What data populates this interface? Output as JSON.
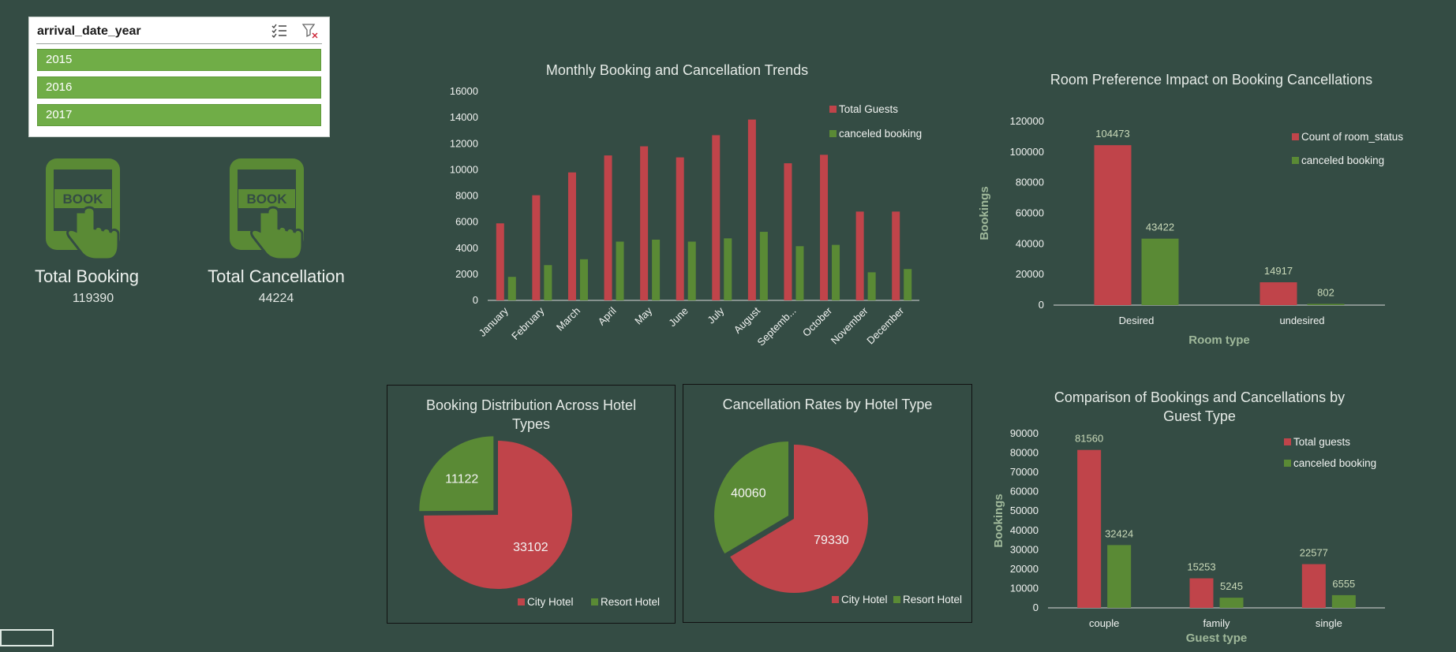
{
  "colors": {
    "red": "#c0444a",
    "green": "#5a8a35",
    "bg": "#344c44",
    "slicer_item": "#70ad47"
  },
  "slicer": {
    "title": "arrival_date_year",
    "items": [
      "2015",
      "2016",
      "2017"
    ],
    "icons": [
      "multi-select-icon",
      "clear-filter-icon"
    ]
  },
  "kpis": [
    {
      "label": "Total Booking",
      "value": "119390",
      "icon": "book-touch-icon",
      "icon_text": "BOOK"
    },
    {
      "label": "Total Cancellation",
      "value": "44224",
      "icon": "book-touch-icon",
      "icon_text": "BOOK"
    }
  ],
  "chart_data": [
    {
      "id": "monthly",
      "type": "bar",
      "title": "Monthly Booking and Cancellation Trends",
      "categories": [
        "January",
        "February",
        "March",
        "April",
        "May",
        "June",
        "July",
        "August",
        "Septemb...",
        "October",
        "November",
        "December"
      ],
      "series": [
        {
          "name": "Total Guests",
          "values": [
            5900,
            8050,
            9800,
            11100,
            11800,
            10950,
            12650,
            13850,
            10500,
            11150,
            6800,
            6800
          ],
          "color": "#c0444a"
        },
        {
          "name": "canceled booking",
          "values": [
            1800,
            2700,
            3150,
            4500,
            4650,
            4500,
            4750,
            5250,
            4150,
            4250,
            2150,
            2400
          ],
          "color": "#5a8a35"
        }
      ],
      "ylim": [
        0,
        16000
      ],
      "yticks": [
        "0",
        "2000",
        "4000",
        "6000",
        "8000",
        "10000",
        "12000",
        "14000",
        "16000"
      ],
      "legend": "top-right"
    },
    {
      "id": "room",
      "type": "bar",
      "title": "Room Preference Impact on Booking Cancellations",
      "categories": [
        "Desired",
        "undesired"
      ],
      "series": [
        {
          "name": "Count of room_status",
          "values": [
            104473,
            14917
          ],
          "labels": [
            "104473",
            "14917"
          ],
          "color": "#c0444a"
        },
        {
          "name": "canceled booking",
          "values": [
            43422,
            802
          ],
          "labels": [
            "43422",
            "802"
          ],
          "color": "#5a8a35"
        }
      ],
      "ylim": [
        0,
        120000
      ],
      "yticks": [
        "0",
        "20000",
        "40000",
        "60000",
        "80000",
        "100000",
        "120000"
      ],
      "xlabel": "Room type",
      "ylabel": "Bookings",
      "legend": "top-right"
    },
    {
      "id": "hotelpie",
      "type": "pie",
      "title": "Booking Distribution Across Hotel Types",
      "slices": [
        {
          "name": "City Hotel",
          "value": 33102,
          "label": "33102",
          "color": "#c0444a"
        },
        {
          "name": "Resort Hotel",
          "value": 11122,
          "label": "11122",
          "color": "#5a8a35"
        }
      ],
      "legend": "bottom"
    },
    {
      "id": "cancelpie",
      "type": "pie",
      "title": "Cancellation Rates by Hotel Type",
      "slices": [
        {
          "name": "City Hotel",
          "value": 79330,
          "label": "79330",
          "color": "#c0444a"
        },
        {
          "name": "Resort Hotel",
          "value": 40060,
          "label": "40060",
          "color": "#5a8a35"
        }
      ],
      "legend": "bottom"
    },
    {
      "id": "guest",
      "type": "bar",
      "title": "Comparison of Bookings and Cancellations by Guest Type",
      "categories": [
        "couple",
        "family",
        "single"
      ],
      "series": [
        {
          "name": "Total guests",
          "values": [
            81560,
            15253,
            22577
          ],
          "labels": [
            "81560",
            "15253",
            "22577"
          ],
          "color": "#c0444a"
        },
        {
          "name": "canceled booking",
          "values": [
            32424,
            5245,
            6555
          ],
          "labels": [
            "32424",
            "5245",
            "6555"
          ],
          "color": "#5a8a35"
        }
      ],
      "ylim": [
        0,
        90000
      ],
      "yticks": [
        "0",
        "10000",
        "20000",
        "30000",
        "40000",
        "50000",
        "60000",
        "70000",
        "80000",
        "90000"
      ],
      "xlabel": "Guest type",
      "ylabel": "Bookings",
      "legend": "top-right"
    }
  ]
}
